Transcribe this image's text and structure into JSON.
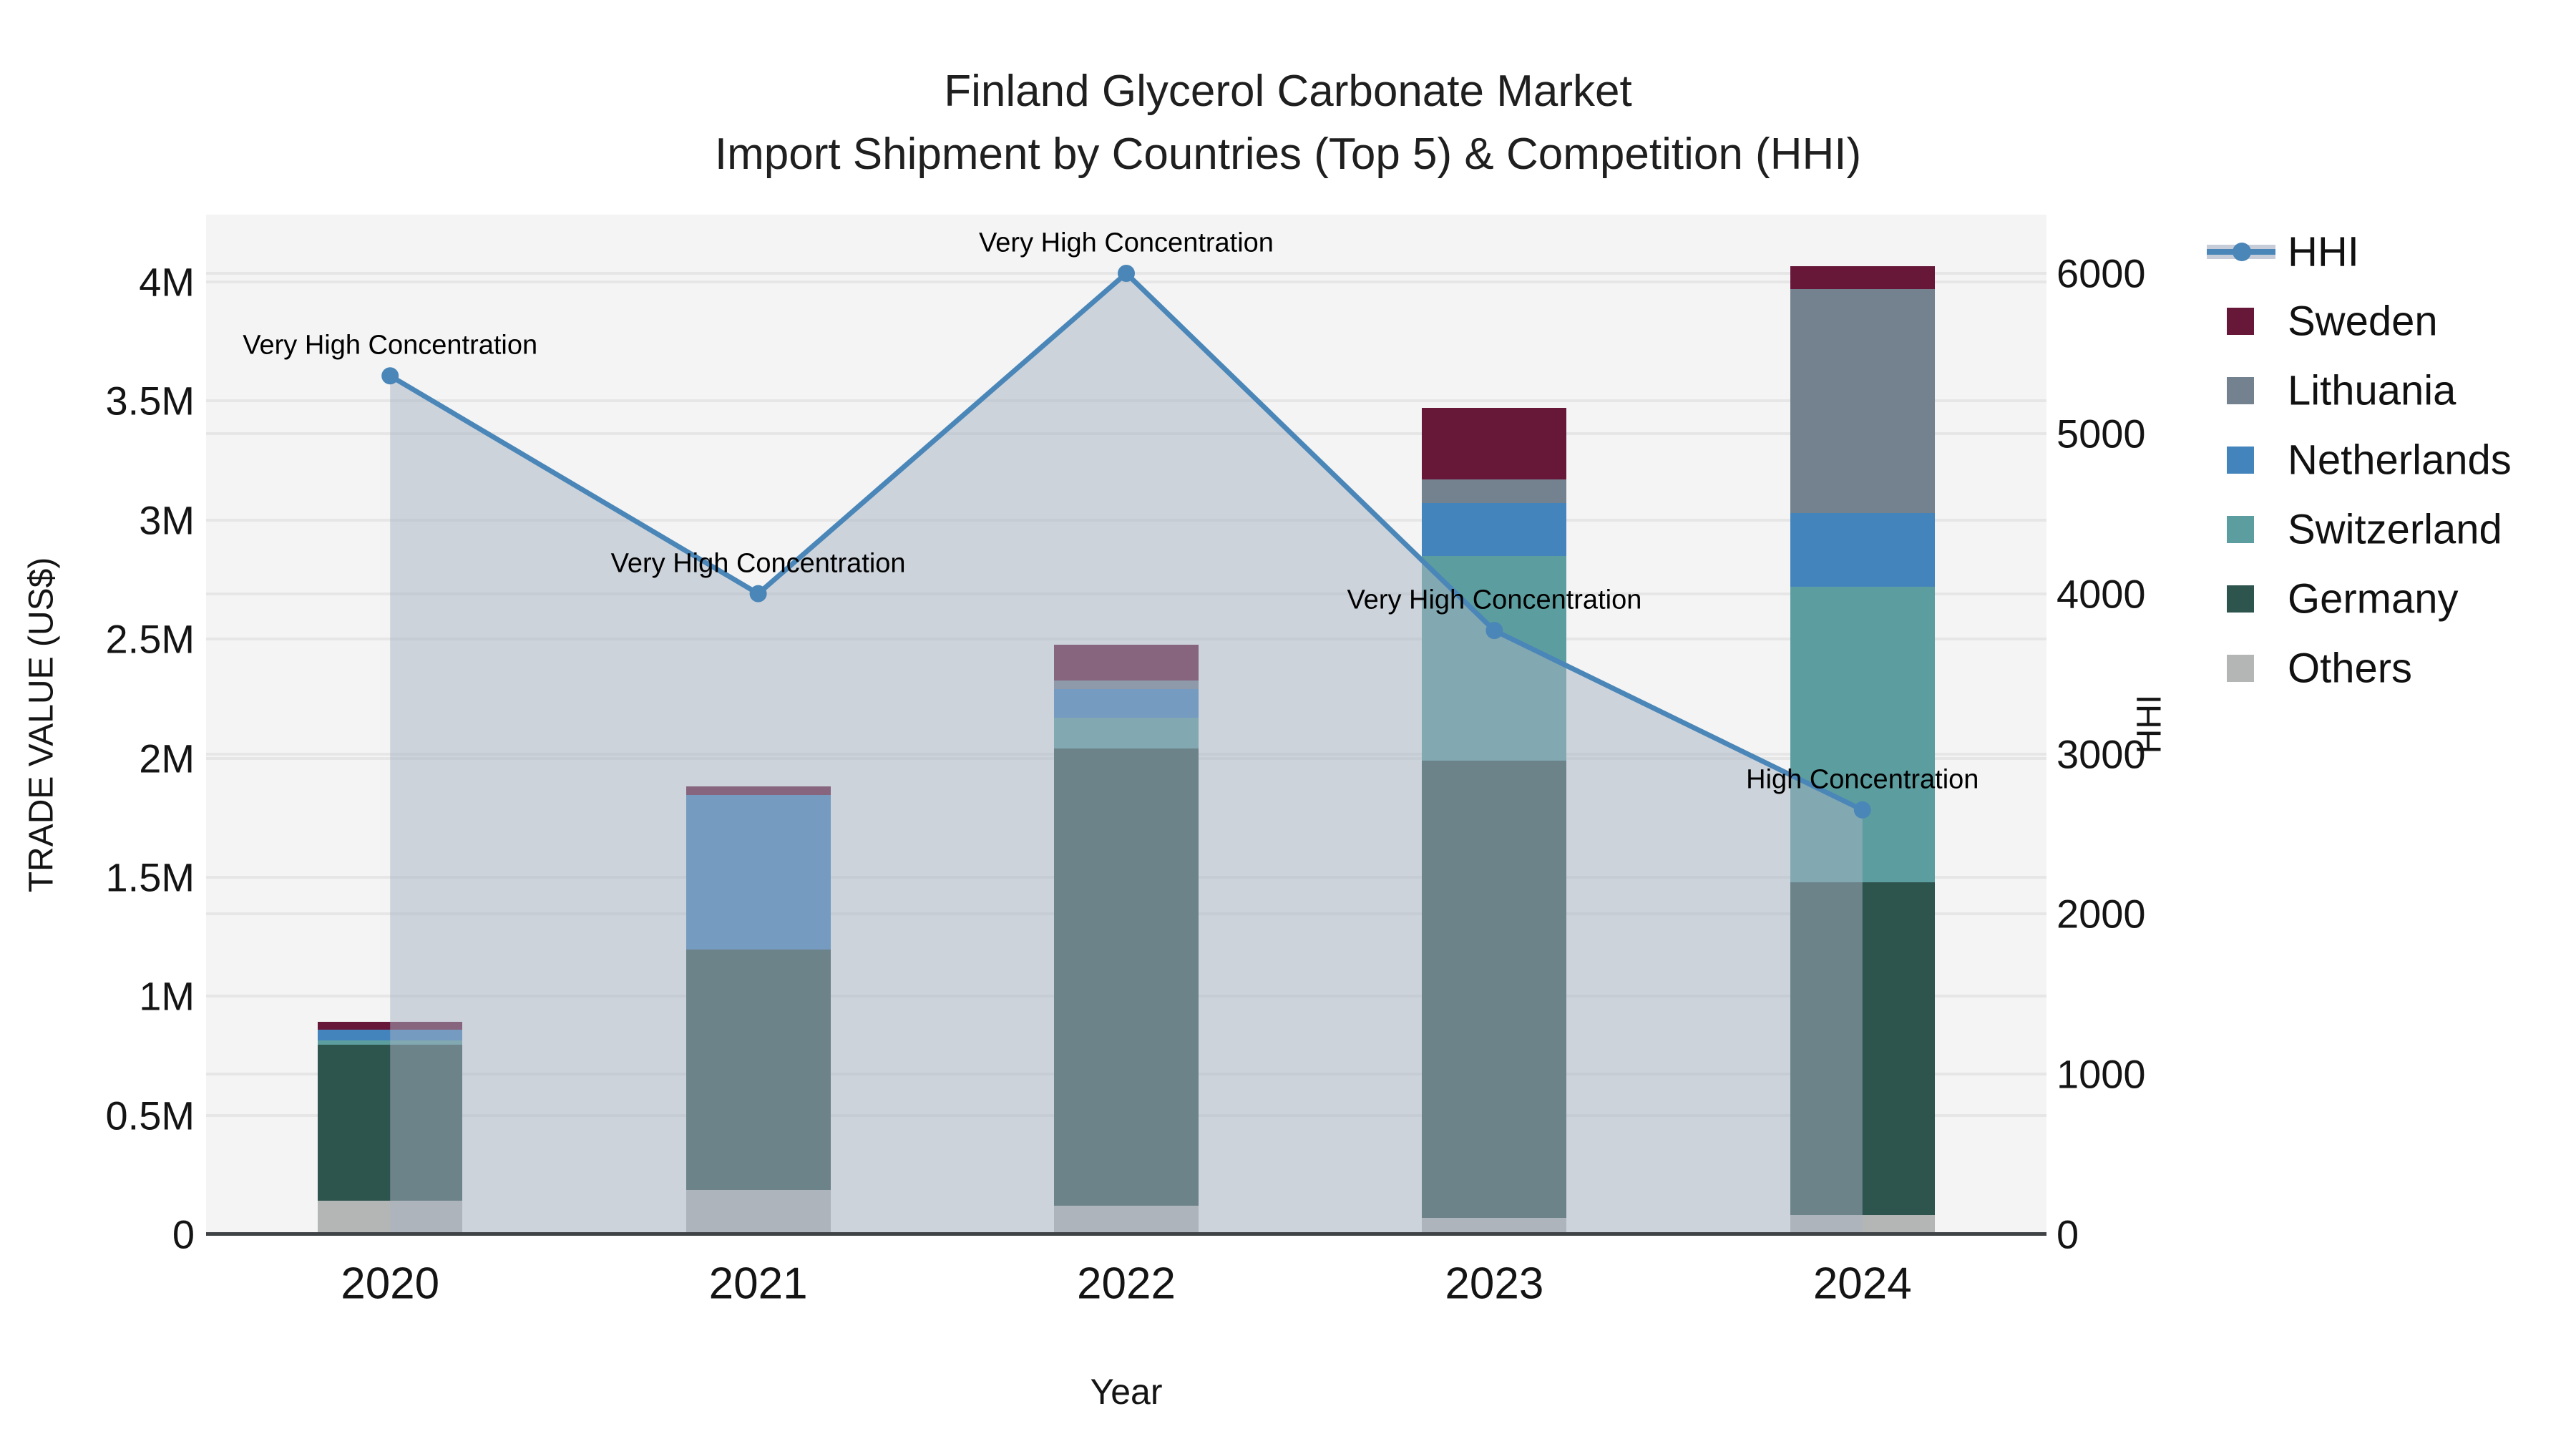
{
  "title": {
    "line1": "Finland Glycerol Carbonate Market",
    "line2": "Import Shipment by Countries (Top 5) & Competition (HHI)"
  },
  "axes": {
    "x": {
      "title": "Year",
      "categories": [
        "2020",
        "2021",
        "2022",
        "2023",
        "2024"
      ]
    },
    "left": {
      "title": "TRADE VALUE (US$)",
      "ticks": [
        {
          "label": "0",
          "value": 0
        },
        {
          "label": "0.5M",
          "value": 500000
        },
        {
          "label": "1M",
          "value": 1000000
        },
        {
          "label": "1.5M",
          "value": 1500000
        },
        {
          "label": "2M",
          "value": 2000000
        },
        {
          "label": "2.5M",
          "value": 2500000
        },
        {
          "label": "3M",
          "value": 3000000
        },
        {
          "label": "3.5M",
          "value": 3500000
        },
        {
          "label": "4M",
          "value": 4000000
        }
      ]
    },
    "right": {
      "title": "HHI",
      "ticks": [
        {
          "label": "0",
          "value": 0
        },
        {
          "label": "1000",
          "value": 1000
        },
        {
          "label": "2000",
          "value": 2000
        },
        {
          "label": "3000",
          "value": 3000
        },
        {
          "label": "4000",
          "value": 4000
        },
        {
          "label": "5000",
          "value": 5000
        },
        {
          "label": "6000",
          "value": 6000
        }
      ]
    }
  },
  "legend": {
    "items": [
      {
        "label": "HHI",
        "type": "line",
        "color": "#4A86B8",
        "band_color": "#C7CDD8"
      },
      {
        "label": "Sweden",
        "type": "swatch",
        "color": "#671839"
      },
      {
        "label": "Lithuania",
        "type": "swatch",
        "color": "#74818F"
      },
      {
        "label": "Netherlands",
        "type": "swatch",
        "color": "#4384BC"
      },
      {
        "label": "Switzerland",
        "type": "swatch",
        "color": "#5C9EA0"
      },
      {
        "label": "Germany",
        "type": "swatch",
        "color": "#2E544E"
      },
      {
        "label": "Others",
        "type": "swatch",
        "color": "#B4B6B5"
      }
    ]
  },
  "chart_data": {
    "type": "bar+line",
    "title": "Finland Glycerol Carbonate Market — Import Shipment by Countries (Top 5) & Competition (HHI)",
    "xlabel": "Year",
    "ylabel_left": "TRADE VALUE (US$)",
    "ylabel_right": "HHI",
    "categories": [
      "2020",
      "2021",
      "2022",
      "2023",
      "2024"
    ],
    "bar_stack_order_bottom_to_top": [
      "Others",
      "Germany",
      "Switzerland",
      "Netherlands",
      "Lithuania",
      "Sweden"
    ],
    "bar_series": [
      {
        "name": "Others",
        "color": "#B4B6B5",
        "values": [
          140000,
          187000,
          120000,
          70000,
          80000
        ]
      },
      {
        "name": "Germany",
        "color": "#2E544E",
        "values": [
          655000,
          1008000,
          1920000,
          1920000,
          1400000
        ]
      },
      {
        "name": "Switzerland",
        "color": "#5C9EA0",
        "values": [
          20000,
          0,
          130000,
          860000,
          1240000
        ]
      },
      {
        "name": "Netherlands",
        "color": "#4384BC",
        "values": [
          45000,
          650000,
          120000,
          220000,
          310000
        ]
      },
      {
        "name": "Lithuania",
        "color": "#74818F",
        "values": [
          0,
          0,
          35000,
          100000,
          940000
        ]
      },
      {
        "name": "Sweden",
        "color": "#671839",
        "values": [
          32000,
          35000,
          150000,
          300000,
          95000
        ]
      }
    ],
    "bar_totals": [
      892000,
      1880000,
      2475000,
      3470000,
      4065000
    ],
    "line_series": {
      "name": "HHI",
      "color": "#4A86B8",
      "area_fill": "rgba(168,178,196,0.5)",
      "values": [
        5360,
        4000,
        6000,
        3770,
        2650
      ]
    },
    "ylim_left": [
      0,
      4285000
    ],
    "ylim_right": [
      0,
      6370
    ],
    "grid": "on",
    "legend_position": "right",
    "annotations": [
      {
        "x": "2020",
        "text": "Very High Concentration"
      },
      {
        "x": "2021",
        "text": "Very High Concentration"
      },
      {
        "x": "2022",
        "text": "Very High Concentration"
      },
      {
        "x": "2023",
        "text": "Very High Concentration"
      },
      {
        "x": "2024",
        "text": "High Concentration"
      }
    ]
  }
}
